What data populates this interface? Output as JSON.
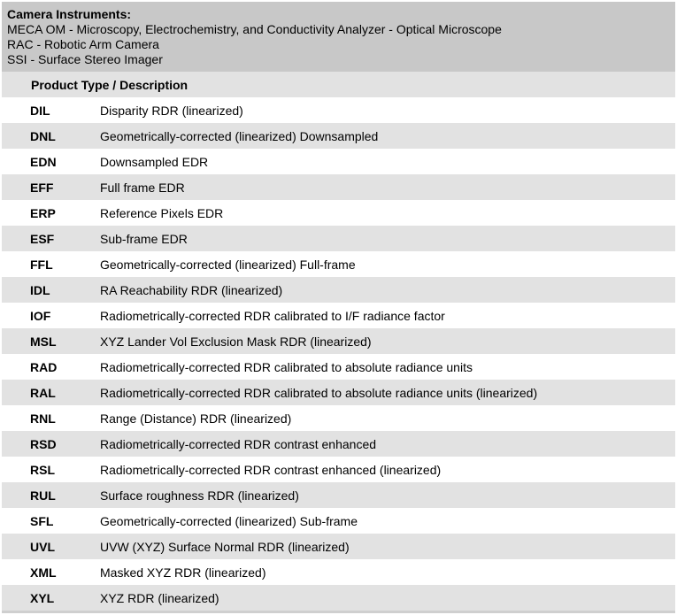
{
  "instruments": {
    "title": "Camera Instruments:",
    "lines": [
      "MECA OM - Microscopy, Electrochemistry, and Conductivity Analyzer - Optical Microscope",
      "RAC - Robotic Arm Camera",
      "SSI - Surface Stereo Imager"
    ]
  },
  "table": {
    "header": "Product Type / Description",
    "rows": [
      {
        "code": "DIL",
        "description": "Disparity RDR (linearized)"
      },
      {
        "code": "DNL",
        "description": "Geometrically-corrected (linearized) Downsampled"
      },
      {
        "code": "EDN",
        "description": "Downsampled EDR"
      },
      {
        "code": "EFF",
        "description": "Full frame EDR"
      },
      {
        "code": "ERP",
        "description": "Reference Pixels EDR"
      },
      {
        "code": "ESF",
        "description": "Sub-frame EDR"
      },
      {
        "code": "FFL",
        "description": "Geometrically-corrected (linearized) Full-frame"
      },
      {
        "code": "IDL",
        "description": "RA Reachability RDR (linearized)"
      },
      {
        "code": "IOF",
        "description": "Radiometrically-corrected RDR calibrated to I/F radiance factor"
      },
      {
        "code": "MSL",
        "description": "XYZ Lander Vol Exclusion Mask RDR (linearized)"
      },
      {
        "code": "RAD",
        "description": "Radiometrically-corrected RDR calibrated to absolute radiance units"
      },
      {
        "code": "RAL",
        "description": "Radiometrically-corrected RDR calibrated to absolute radiance units (linearized)"
      },
      {
        "code": "RNL",
        "description": "Range (Distance) RDR (linearized)"
      },
      {
        "code": "RSD",
        "description": "Radiometrically-corrected RDR contrast enhanced"
      },
      {
        "code": "RSL",
        "description": "Radiometrically-corrected RDR contrast enhanced (linearized)"
      },
      {
        "code": "RUL",
        "description": "Surface roughness RDR (linearized)"
      },
      {
        "code": "SFL",
        "description": "Geometrically-corrected (linearized) Sub-frame"
      },
      {
        "code": "UVL",
        "description": "UVW (XYZ) Surface Normal RDR (linearized)"
      },
      {
        "code": "XML",
        "description": "Masked XYZ RDR (linearized)"
      },
      {
        "code": "XYL",
        "description": "XYZ RDR (linearized)"
      }
    ]
  },
  "colors": {
    "instrument_bg": "#c8c8c8",
    "shaded_row": "#e2e2e2",
    "white_row": "#ffffff"
  }
}
